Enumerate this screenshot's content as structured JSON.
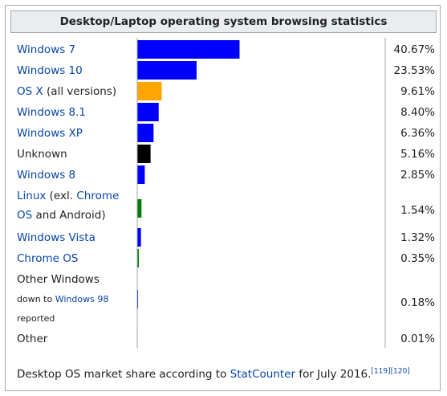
{
  "chart_data": {
    "type": "bar",
    "orientation": "horizontal",
    "title": "Desktop/Laptop operating system browsing statistics",
    "categories": [
      "Windows 7",
      "Windows 10",
      "OS X (all versions)",
      "Windows 8.1",
      "Windows XP",
      "Unknown",
      "Windows 8",
      "Linux (exl. Chrome OS and Android)",
      "Windows Vista",
      "Chrome OS",
      "Other Windows down to Windows 98 reported",
      "Other"
    ],
    "values": [
      40.67,
      23.53,
      9.61,
      8.4,
      6.36,
      5.16,
      2.85,
      1.54,
      1.32,
      0.35,
      0.18,
      0.01
    ],
    "value_labels": [
      "40.67%",
      "23.53%",
      "9.61%",
      "8.40%",
      "6.36%",
      "5.16%",
      "2.85%",
      "1.54%",
      "1.32%",
      "0.35%",
      "0.18%",
      "0.01%"
    ],
    "colors": [
      "#0000ff",
      "#0000ff",
      "#ffa500",
      "#0000ff",
      "#0000ff",
      "#000000",
      "#0000ff",
      "#008000",
      "#0000ff",
      "#008000",
      "#0000ff",
      "#000000"
    ],
    "xlim": [
      0,
      100
    ],
    "grid": false
  },
  "label_parts": [
    [
      {
        "text": "Windows 7",
        "link": true
      }
    ],
    [
      {
        "text": "Windows 10",
        "link": true
      }
    ],
    [
      {
        "text": "OS X",
        "link": true
      },
      {
        "text": " (all versions)",
        "link": false
      }
    ],
    [
      {
        "text": "Windows 8.1",
        "link": true
      }
    ],
    [
      {
        "text": "Windows XP",
        "link": true
      }
    ],
    [
      {
        "text": "Unknown",
        "link": false
      }
    ],
    [
      {
        "text": "Windows 8",
        "link": true
      }
    ],
    [
      {
        "text": "Linux",
        "link": true
      },
      {
        "text": " (exl. ",
        "link": false
      },
      {
        "text": "Chrome",
        "link": true
      }
    ],
    [
      {
        "text": "Windows Vista",
        "link": true
      }
    ],
    [
      {
        "text": "Chrome OS",
        "link": true
      }
    ],
    [
      {
        "text": "Other Windows",
        "link": false
      }
    ],
    [
      {
        "text": "Other",
        "link": false
      }
    ]
  ],
  "extra_lines": {
    "linux_line2": [
      {
        "text": "OS",
        "link": true
      },
      {
        "text": " and Android)",
        "link": false
      }
    ],
    "other_windows_line2": [
      {
        "text": "down to ",
        "link": false,
        "small": true
      },
      {
        "text": "Windows 98",
        "link": true,
        "small": true
      }
    ],
    "other_windows_line3": [
      {
        "text": "reported",
        "link": false,
        "small": true
      }
    ]
  },
  "caption": {
    "text": "Desktop OS market share according to ",
    "link": "StatCounter",
    "suffix": " for July 2016.",
    "refs": "[119][120]"
  },
  "colors": {
    "link": "#0645ad",
    "header_bg": "#eaecf0",
    "border": "#a2a9b1",
    "text": "#202122"
  }
}
